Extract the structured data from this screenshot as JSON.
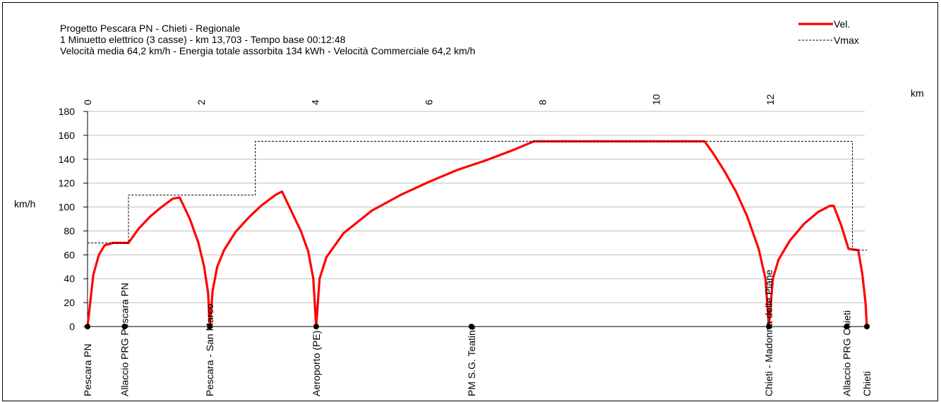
{
  "header": {
    "line1": "Progetto Pescara PN - Chieti - Regionale",
    "line2": "1 Minuetto elettrico (3 casse)  -  km 13,703  -  Tempo base 00:12:48",
    "line3": "Velocità media 64,2 km/h  -  Energia totale assorbita 134 kWh  -  Velocità Commerciale 64,2 km/h"
  },
  "colors": {
    "vel": "#ff0000",
    "vmax": "#000000",
    "grid": "#bfbfbf"
  },
  "chart_data": {
    "type": "line",
    "xlabel": "km",
    "ylabel": "km/h",
    "xlim": [
      0,
      13.703
    ],
    "ylim": [
      0,
      180
    ],
    "x_ticks": [
      0,
      2,
      4,
      6,
      8,
      10,
      12
    ],
    "y_ticks": [
      0,
      20,
      40,
      60,
      80,
      100,
      120,
      140,
      160,
      180
    ],
    "legend_position": "top-right",
    "grid": true,
    "series": [
      {
        "name": "Vel.",
        "style": "solid",
        "points": [
          [
            0,
            0
          ],
          [
            0.1,
            43
          ],
          [
            0.2,
            60
          ],
          [
            0.3,
            68
          ],
          [
            0.45,
            70
          ],
          [
            0.72,
            70
          ],
          [
            0.9,
            82
          ],
          [
            1.1,
            92
          ],
          [
            1.3,
            100
          ],
          [
            1.5,
            107
          ],
          [
            1.62,
            108
          ],
          [
            1.8,
            90
          ],
          [
            1.95,
            70
          ],
          [
            2.05,
            50
          ],
          [
            2.12,
            28
          ],
          [
            2.15,
            0
          ],
          [
            2.2,
            30
          ],
          [
            2.28,
            50
          ],
          [
            2.4,
            64
          ],
          [
            2.6,
            79
          ],
          [
            2.85,
            92
          ],
          [
            3.05,
            101
          ],
          [
            3.3,
            110
          ],
          [
            3.42,
            113
          ],
          [
            3.6,
            95
          ],
          [
            3.75,
            80
          ],
          [
            3.88,
            63
          ],
          [
            3.97,
            40
          ],
          [
            4.02,
            0
          ],
          [
            4.08,
            40
          ],
          [
            4.2,
            58
          ],
          [
            4.5,
            78
          ],
          [
            5.0,
            97
          ],
          [
            5.5,
            110
          ],
          [
            6.0,
            121
          ],
          [
            6.5,
            131
          ],
          [
            7.0,
            139
          ],
          [
            7.5,
            148
          ],
          [
            7.85,
            155
          ],
          [
            10.85,
            155
          ],
          [
            11.0,
            145
          ],
          [
            11.2,
            130
          ],
          [
            11.4,
            113
          ],
          [
            11.6,
            92
          ],
          [
            11.8,
            65
          ],
          [
            11.92,
            40
          ],
          [
            11.98,
            0
          ],
          [
            12.05,
            40
          ],
          [
            12.15,
            56
          ],
          [
            12.35,
            72
          ],
          [
            12.6,
            86
          ],
          [
            12.85,
            96
          ],
          [
            13.05,
            101
          ],
          [
            13.12,
            101
          ],
          [
            13.25,
            85
          ],
          [
            13.38,
            65
          ],
          [
            13.55,
            64
          ],
          [
            13.62,
            45
          ],
          [
            13.68,
            20
          ],
          [
            13.703,
            0
          ]
        ]
      },
      {
        "name": "Vmax",
        "style": "dashed",
        "points": [
          [
            0,
            70
          ],
          [
            0.72,
            70
          ],
          [
            0.72,
            110
          ],
          [
            2.95,
            110
          ],
          [
            2.95,
            155
          ],
          [
            13.45,
            155
          ],
          [
            13.45,
            64
          ],
          [
            13.703,
            64
          ]
        ]
      }
    ],
    "stations": [
      {
        "name": "Pescara PN",
        "km": 0
      },
      {
        "name": "Allaccio PRG Pescara PN",
        "km": 0.65
      },
      {
        "name": "Pescara - San Marco",
        "km": 2.15
      },
      {
        "name": "Aeroporto (PE)",
        "km": 4.02
      },
      {
        "name": "PM S.G. Teatino",
        "km": 6.75
      },
      {
        "name": "Chieti - Madonna delle Piane",
        "km": 11.98
      },
      {
        "name": "Allaccio PRG Chieti",
        "km": 13.35
      },
      {
        "name": "Chieti",
        "km": 13.703
      }
    ]
  }
}
